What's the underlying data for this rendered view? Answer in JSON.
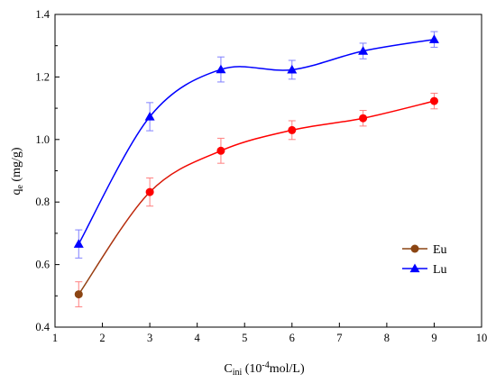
{
  "chart_data": {
    "type": "line",
    "xlabel_main": "C",
    "xlabel_sub": "ini",
    "xlabel_rest": " (10",
    "xlabel_sup": "-4",
    "xlabel_tail": "mol/L)",
    "ylabel_main": "q",
    "ylabel_sub": "e",
    "ylabel_rest": " (mg/g)",
    "xlim": [
      1,
      10
    ],
    "ylim": [
      0.4,
      1.4
    ],
    "xticks": [
      "1",
      "2",
      "3",
      "4",
      "5",
      "6",
      "7",
      "8",
      "9",
      "10"
    ],
    "yticks": [
      "0.4",
      "0.6",
      "0.8",
      "1.0",
      "1.2",
      "1.4"
    ],
    "legend_position": "right",
    "series": [
      {
        "name": "Eu",
        "marker": "circle",
        "point_color": "#ff0000",
        "line_color": "#ff0000",
        "line_color_start": "#8b4513",
        "errorbar_color": "#ff8080",
        "legend_marker_color": "#8b4513",
        "x": [
          1.5,
          3.0,
          4.5,
          6.0,
          7.5,
          9.0
        ],
        "y": [
          0.505,
          0.832,
          0.964,
          1.03,
          1.068,
          1.123
        ],
        "err": [
          0.04,
          0.045,
          0.04,
          0.03,
          0.025,
          0.025
        ]
      },
      {
        "name": "Lu",
        "marker": "triangle",
        "point_color": "#0000ff",
        "line_color": "#0000ff",
        "errorbar_color": "#8080ff",
        "legend_marker_color": "#0000ff",
        "x": [
          1.5,
          3.0,
          4.5,
          6.0,
          7.5,
          9.0
        ],
        "y": [
          0.666,
          1.073,
          1.224,
          1.223,
          1.283,
          1.32
        ],
        "err": [
          0.045,
          0.045,
          0.04,
          0.03,
          0.025,
          0.025
        ]
      }
    ]
  }
}
